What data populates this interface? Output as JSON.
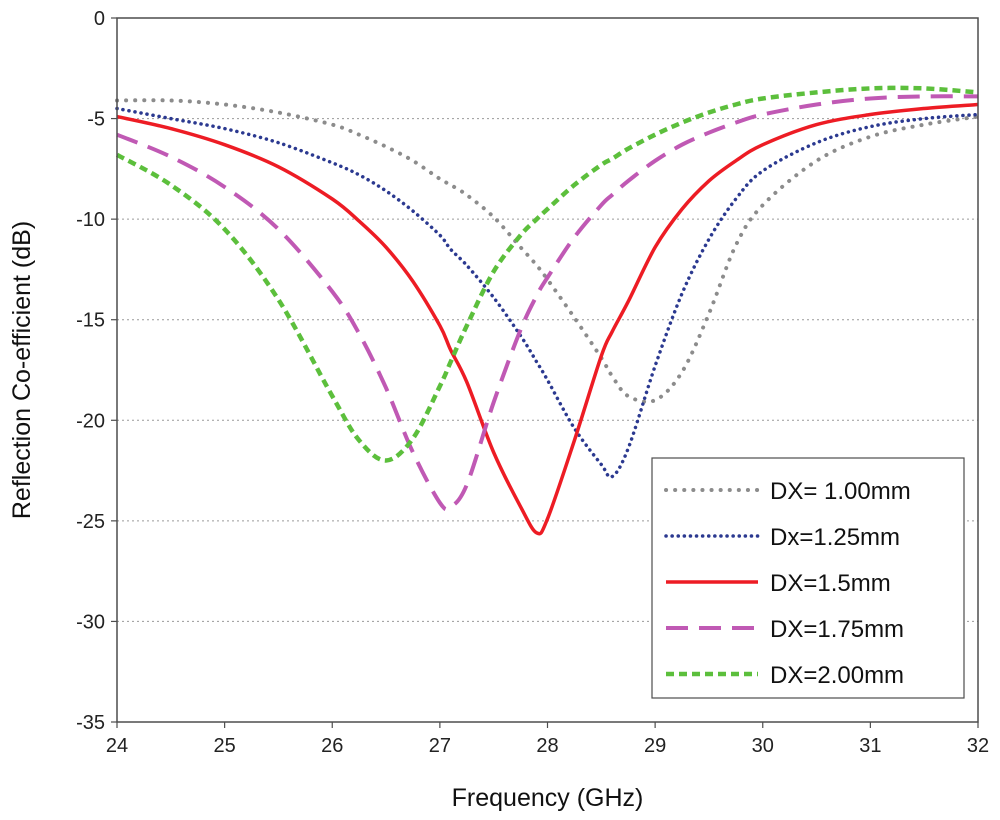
{
  "chart_data": {
    "type": "line",
    "title": "",
    "xlabel": "Frequency (GHz)",
    "ylabel": "Reflection Co-efficient (dB)",
    "xlim": [
      24,
      32
    ],
    "ylim": [
      -35,
      0
    ],
    "xticks": [
      "24",
      "25",
      "26",
      "27",
      "28",
      "29",
      "30",
      "31",
      "32"
    ],
    "yticks": [
      "0",
      "-5",
      "-10",
      "-15",
      "-20",
      "-25",
      "-30",
      "-35"
    ],
    "grid": "horizontal dotted",
    "legend_position": "bottom-right",
    "x": [
      24.0,
      24.5,
      25.0,
      25.5,
      26.0,
      26.25,
      26.5,
      26.75,
      27.0,
      27.1,
      27.25,
      27.5,
      27.75,
      27.9,
      28.0,
      28.25,
      28.5,
      28.6,
      28.75,
      29.0,
      29.25,
      29.5,
      29.75,
      30.0,
      30.5,
      31.0,
      31.5,
      32.0
    ],
    "series": [
      {
        "name": "DX= 1.00mm",
        "color": "#8c8c8c",
        "dash": "dot",
        "values": [
          -4.1,
          -4.1,
          -4.3,
          -4.7,
          -5.3,
          -5.8,
          -6.4,
          -7.1,
          -8.0,
          -8.3,
          -8.8,
          -9.9,
          -11.4,
          -12.3,
          -13.0,
          -14.9,
          -16.9,
          -17.8,
          -18.8,
          -19.0,
          -17.6,
          -14.7,
          -11.3,
          -9.3,
          -7.1,
          -5.9,
          -5.3,
          -4.9
        ]
      },
      {
        "name": "Dx=1.25mm",
        "color": "#2b3990",
        "dash": "dot-fine",
        "values": [
          -4.5,
          -5.0,
          -5.5,
          -6.2,
          -7.2,
          -7.8,
          -8.6,
          -9.6,
          -10.8,
          -11.5,
          -12.3,
          -13.9,
          -15.8,
          -17.1,
          -18.0,
          -20.4,
          -22.2,
          -22.8,
          -21.4,
          -17.3,
          -13.7,
          -11.0,
          -9.0,
          -7.6,
          -6.2,
          -5.4,
          -5.0,
          -4.8
        ]
      },
      {
        "name": "DX=1.5mm",
        "color": "#ed1c24",
        "dash": "solid",
        "values": [
          -4.9,
          -5.5,
          -6.3,
          -7.4,
          -9.0,
          -10.1,
          -11.4,
          -13.1,
          -15.3,
          -16.5,
          -18.1,
          -21.6,
          -24.3,
          -25.6,
          -24.9,
          -21.0,
          -16.8,
          -15.6,
          -14.1,
          -11.4,
          -9.5,
          -8.1,
          -7.1,
          -6.3,
          -5.3,
          -4.8,
          -4.5,
          -4.3
        ]
      },
      {
        "name": "DX=1.75mm",
        "color": "#c059b4",
        "dash": "dash",
        "values": [
          -5.8,
          -6.9,
          -8.4,
          -10.5,
          -13.6,
          -15.7,
          -18.4,
          -21.6,
          -24.1,
          -24.3,
          -23.2,
          -19.1,
          -15.5,
          -13.8,
          -12.9,
          -10.9,
          -9.3,
          -8.8,
          -8.1,
          -7.1,
          -6.3,
          -5.7,
          -5.2,
          -4.8,
          -4.3,
          -4.0,
          -3.9,
          -3.9
        ]
      },
      {
        "name": "DX=2.00mm",
        "color": "#5cbf3c",
        "dash": "dash-short",
        "values": [
          -6.8,
          -8.3,
          -10.5,
          -14.0,
          -18.8,
          -21.0,
          -22.0,
          -20.9,
          -18.3,
          -17.1,
          -15.3,
          -12.6,
          -10.8,
          -10.0,
          -9.5,
          -8.3,
          -7.3,
          -7.0,
          -6.5,
          -5.8,
          -5.2,
          -4.7,
          -4.3,
          -4.0,
          -3.7,
          -3.5,
          -3.5,
          -3.7
        ]
      }
    ]
  }
}
